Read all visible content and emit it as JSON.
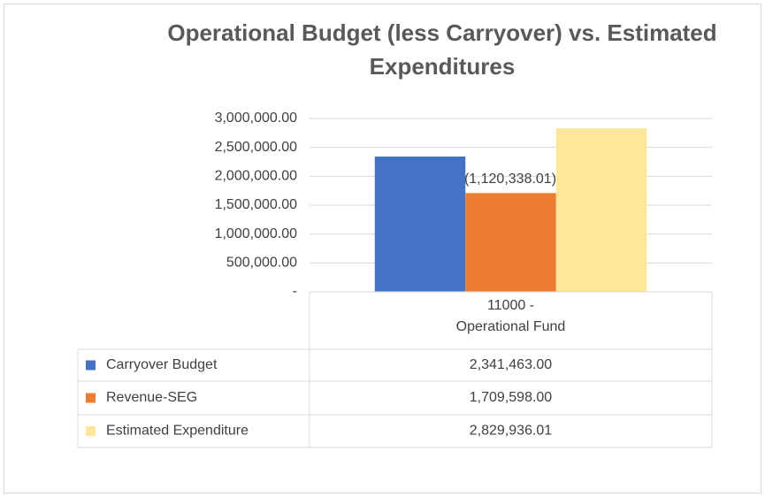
{
  "chart_data": {
    "type": "bar",
    "title": "Operational Budget (less Carryover) vs. Estimated Expenditures",
    "categories": [
      "11000 -\nOperational Fund"
    ],
    "series": [
      {
        "name": "Carryover Budget",
        "color": "#4472c4",
        "values": [
          2341463.0
        ],
        "value_labels": [
          "2,341,463.00"
        ]
      },
      {
        "name": "Revenue-SEG",
        "color": "#ed7d31",
        "values": [
          1709598.0
        ],
        "value_labels": [
          "1,709,598.00"
        ]
      },
      {
        "name": "Estimated Expenditure",
        "color": "#ffe699",
        "values": [
          2829936.01
        ],
        "value_labels": [
          "2,829,936.01"
        ]
      }
    ],
    "annotation": "(1,120,338.01)",
    "ylim": [
      0,
      3000000
    ],
    "yticks": [
      {
        "value": 0,
        "label": "-"
      },
      {
        "value": 500000,
        "label": "500,000.00"
      },
      {
        "value": 1000000,
        "label": "1,000,000.00"
      },
      {
        "value": 1500000,
        "label": "1,500,000.00"
      },
      {
        "value": 2000000,
        "label": "2,000,000.00"
      },
      {
        "value": 2500000,
        "label": "2,500,000.00"
      },
      {
        "value": 3000000,
        "label": "3,000,000.00"
      }
    ],
    "grid": true
  }
}
